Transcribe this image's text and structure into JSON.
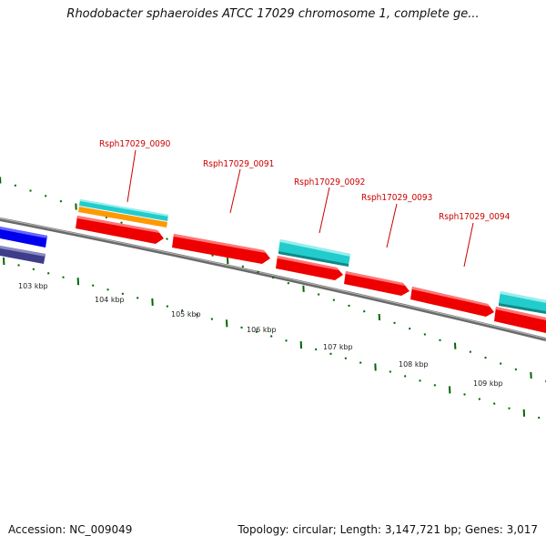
{
  "title": "Rhodobacter sphaeroides ATCC 17029 chromosome 1, complete ge...",
  "footer": {
    "accession": "Accession: NC_009049",
    "summary": "Topology: circular; Length: 3,147,721 bp; Genes: 3,017"
  },
  "colors": {
    "forward_gene": "#ee0000",
    "cyan_feature": "#22cccc",
    "orange_feature": "#ff9900",
    "blue_feature": "#0000ee",
    "navy_feature": "#3d3d8a",
    "backbone": "#777777",
    "tick": "#006600",
    "gene_label": "#cc0000"
  },
  "ticks": [
    {
      "label": "103 kbp"
    },
    {
      "label": "104 kbp"
    },
    {
      "label": "105 kbp"
    },
    {
      "label": "106 kbp"
    },
    {
      "label": "107 kbp"
    },
    {
      "label": "108 kbp"
    },
    {
      "label": "109 kbp"
    }
  ],
  "gene_labels": [
    {
      "name": "Rsph17029_0090"
    },
    {
      "name": "Rsph17029_0091"
    },
    {
      "name": "Rsph17029_0092"
    },
    {
      "name": "Rsph17029_0093"
    },
    {
      "name": "Rsph17029_0094"
    }
  ]
}
